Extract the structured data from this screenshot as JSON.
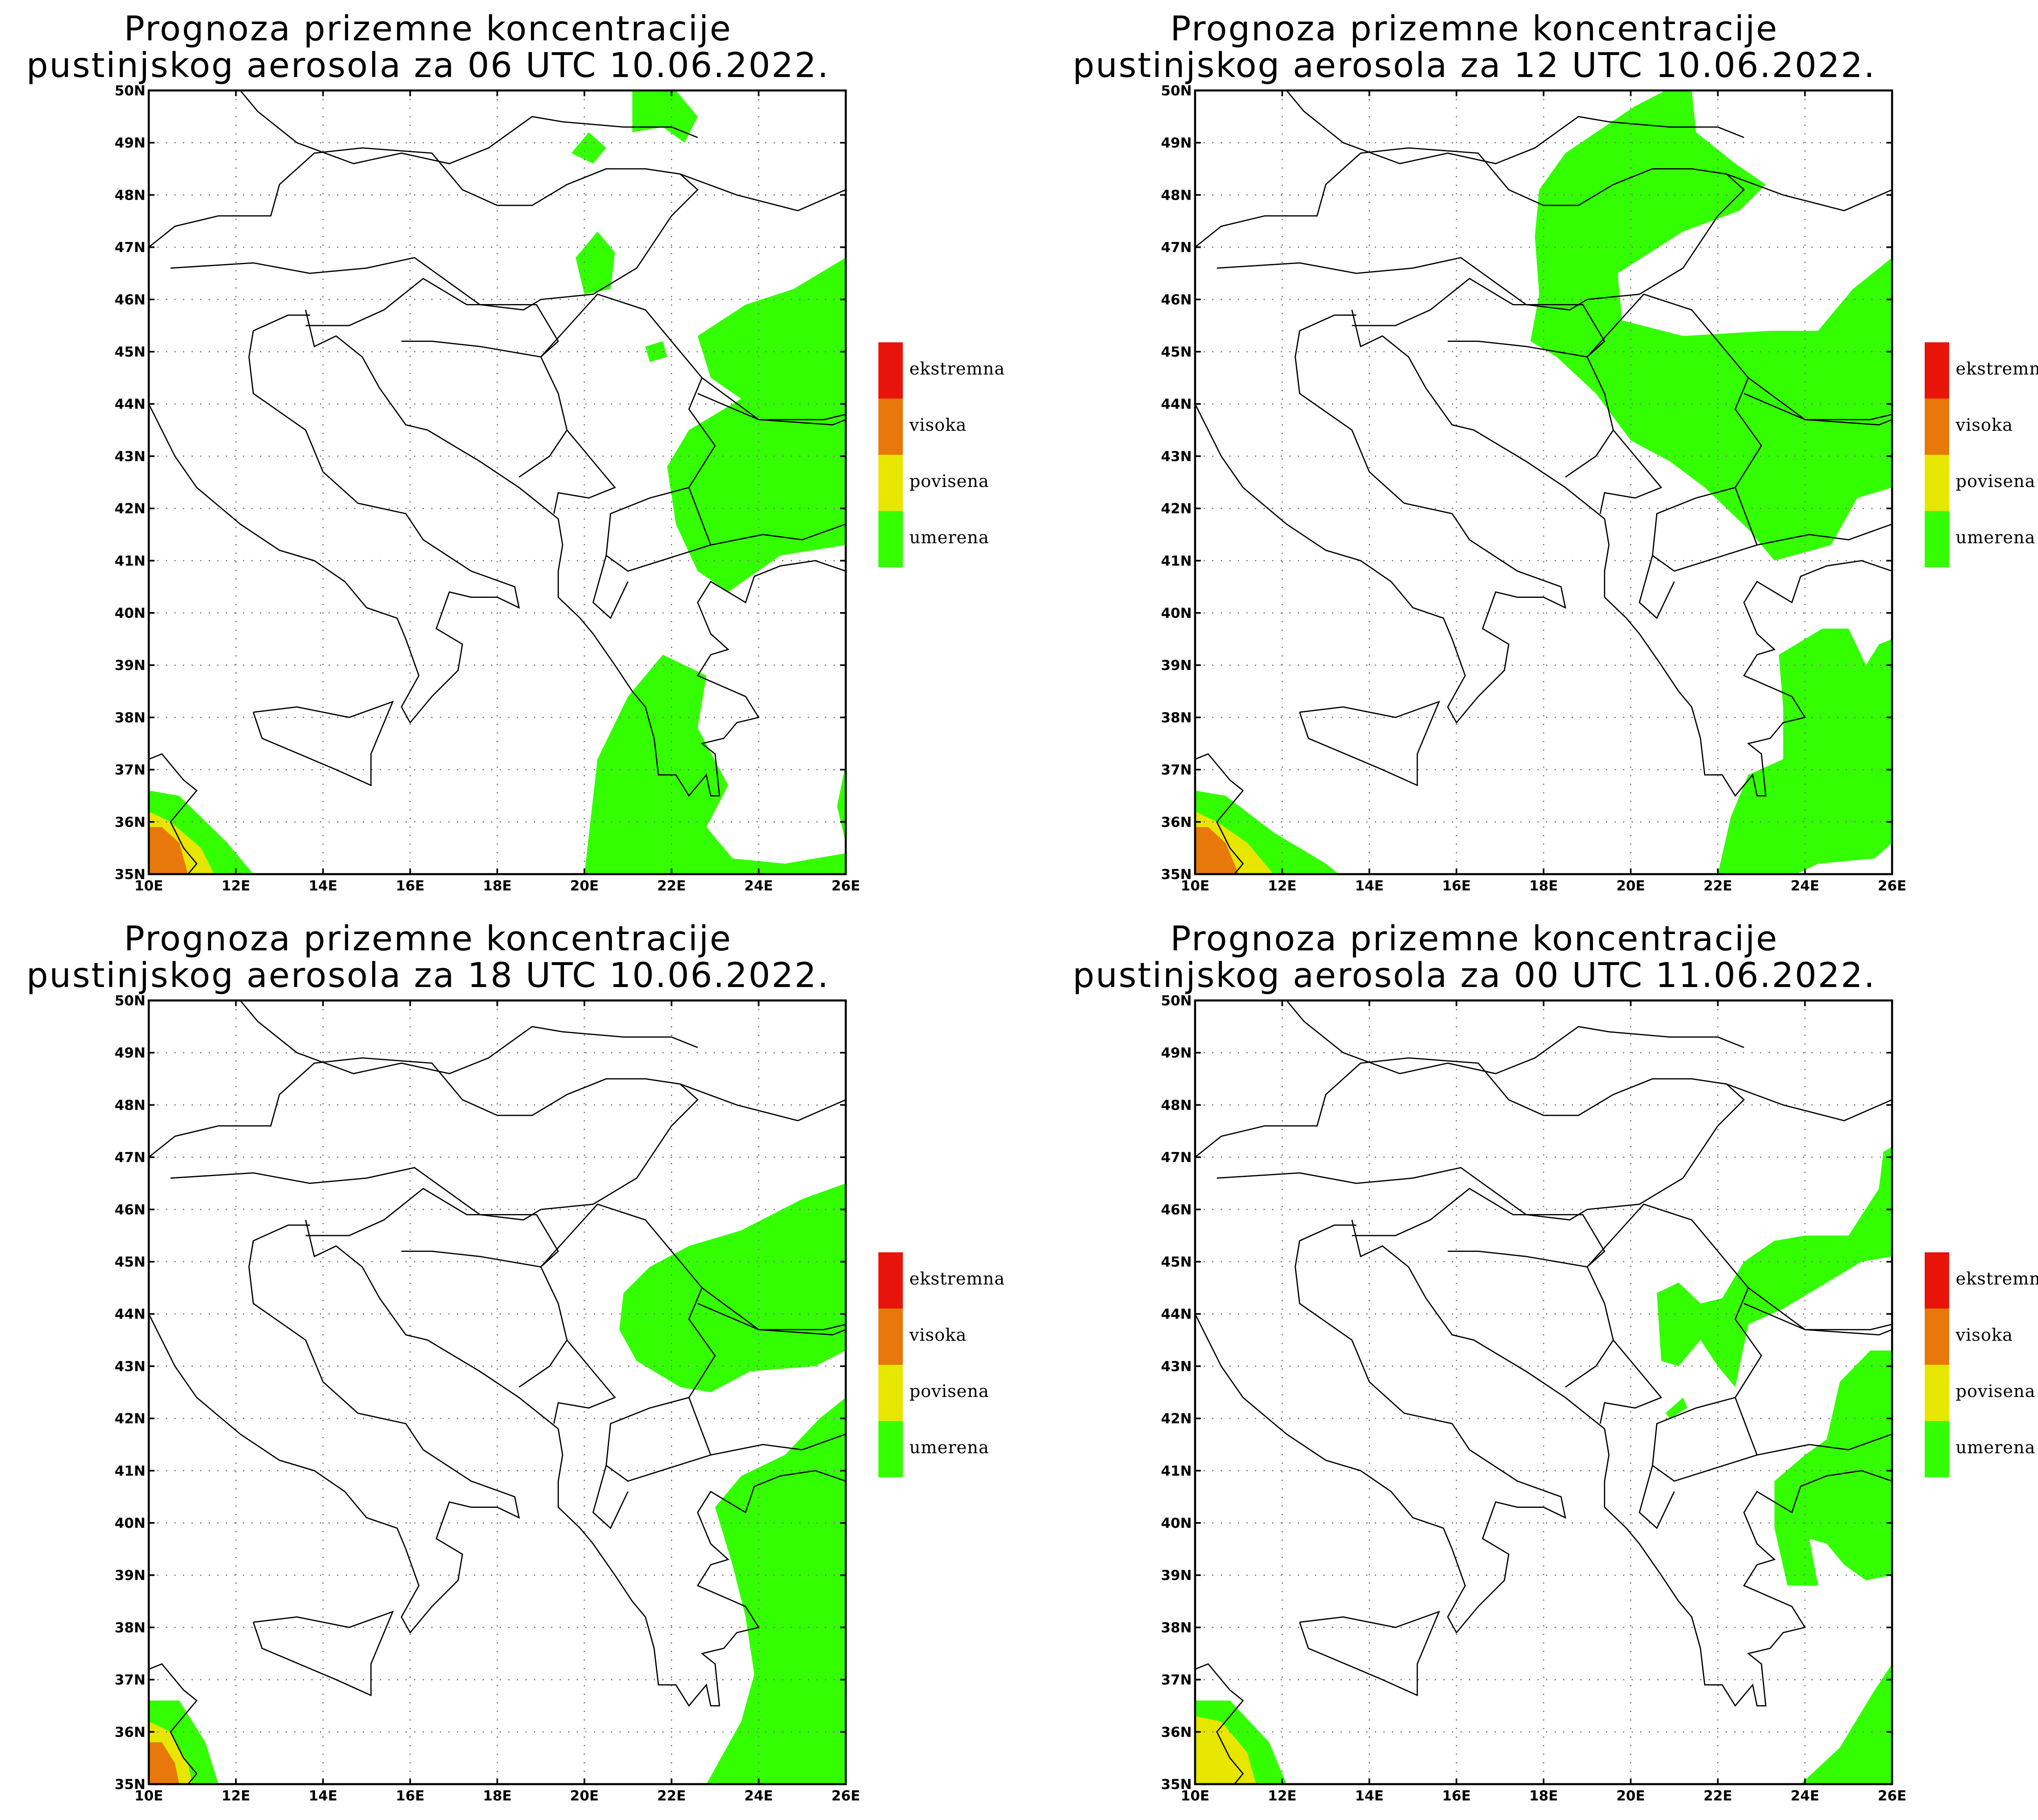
{
  "maps": [
    {
      "title_line1": "Prognoza prizemne koncentracije",
      "title_line2": "pustinjskog aerosola za 06 UTC 10.06.2022."
    },
    {
      "title_line1": "Prognoza prizemne koncentracije",
      "title_line2": "pustinjskog aerosola za 12 UTC 10.06.2022."
    },
    {
      "title_line1": "Prognoza prizemne koncentracije",
      "title_line2": "pustinjskog aerosola za 18 UTC 10.06.2022."
    },
    {
      "title_line1": "Prognoza prizemne koncentracije",
      "title_line2": "pustinjskog aerosola za 00 UTC 11.06.2022."
    }
  ],
  "axes": {
    "lon_ticks": [
      "10E",
      "12E",
      "14E",
      "16E",
      "18E",
      "20E",
      "22E",
      "24E",
      "26E"
    ],
    "lat_ticks": [
      "35N",
      "36N",
      "37N",
      "38N",
      "39N",
      "40N",
      "41N",
      "42N",
      "43N",
      "44N",
      "45N",
      "46N",
      "47N",
      "48N",
      "49N",
      "50N"
    ],
    "lon_range": [
      10,
      26
    ],
    "lat_range": [
      35,
      50
    ],
    "grid": "dotted"
  },
  "legend": [
    {
      "label": "ekstremna",
      "color": "#e8140a"
    },
    {
      "label": "visoka",
      "color": "#e8780a"
    },
    {
      "label": "povisena",
      "color": "#e6e600"
    },
    {
      "label": "umerena",
      "color": "#33ff00"
    }
  ],
  "colors": {
    "umerena": "#33ff00",
    "povisena": "#e6e600",
    "visoka": "#e8780a",
    "ekstremna": "#e8140a"
  }
}
